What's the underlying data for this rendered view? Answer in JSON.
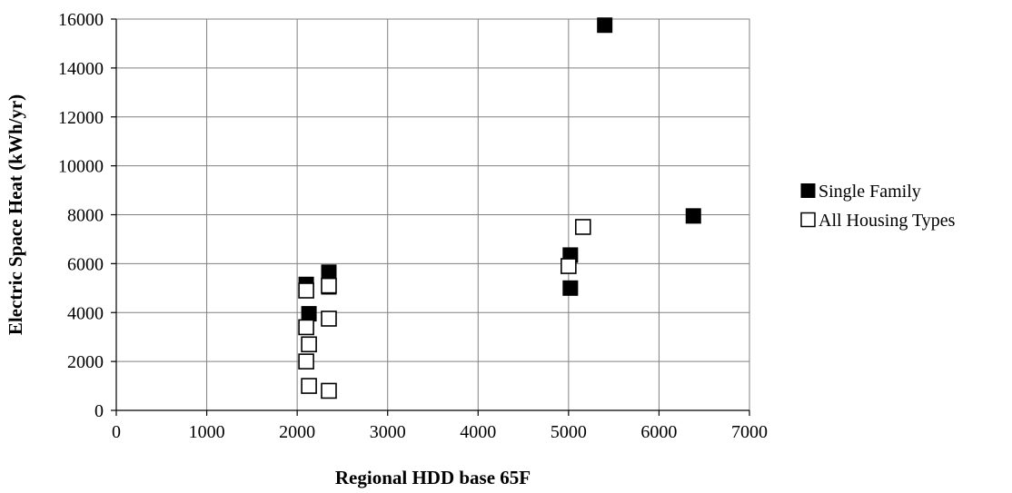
{
  "chart_data": {
    "type": "scatter",
    "title": "",
    "xlabel": "Regional HDD base 65F",
    "ylabel": "Electric Space Heat (kWh/yr)",
    "xlim": [
      0,
      7000
    ],
    "ylim": [
      0,
      16000
    ],
    "x_ticks": [
      0,
      1000,
      2000,
      3000,
      4000,
      5000,
      6000,
      7000
    ],
    "y_ticks": [
      0,
      2000,
      4000,
      6000,
      8000,
      10000,
      12000,
      14000,
      16000
    ],
    "grid": true,
    "legend_position": "right",
    "series": [
      {
        "name": "Single Family",
        "marker": "filled-square",
        "color": "#000000",
        "points": [
          {
            "x": 2100,
            "y": 5150
          },
          {
            "x": 2130,
            "y": 3950
          },
          {
            "x": 2350,
            "y": 5650
          },
          {
            "x": 2350,
            "y": 5050
          },
          {
            "x": 5020,
            "y": 6350
          },
          {
            "x": 5020,
            "y": 5000
          },
          {
            "x": 5400,
            "y": 15750
          },
          {
            "x": 6380,
            "y": 7950
          }
        ]
      },
      {
        "name": "All Housing Types",
        "marker": "open-square",
        "color": "#000000",
        "points": [
          {
            "x": 2100,
            "y": 4900
          },
          {
            "x": 2100,
            "y": 3400
          },
          {
            "x": 2130,
            "y": 2700
          },
          {
            "x": 2100,
            "y": 2000
          },
          {
            "x": 2130,
            "y": 1000
          },
          {
            "x": 2350,
            "y": 5100
          },
          {
            "x": 2350,
            "y": 3750
          },
          {
            "x": 2350,
            "y": 800
          },
          {
            "x": 5000,
            "y": 5900
          },
          {
            "x": 5160,
            "y": 7500
          }
        ]
      }
    ]
  }
}
